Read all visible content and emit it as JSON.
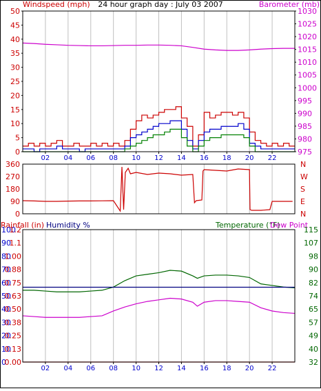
{
  "colors": {
    "frame": "#000000",
    "grid": "#c0c0c0",
    "wind_gust": "#cc0000",
    "wind_avg": "#0000cc",
    "wind_low": "#008000",
    "barometer": "#cc00cc",
    "direction": "#cc0000",
    "rain": "#cc0000",
    "humidity": "#000080",
    "temperature": "#006600",
    "dew_point": "#cc00cc",
    "blue_text": "#0000cc"
  },
  "chart_data": [
    {
      "type": "line",
      "title": "24 hour graph day : July 03 2007",
      "ylabel": "Windspeed (mph)",
      "y2label": "Barometer (mb)",
      "x_ticks": [
        "02",
        "04",
        "06",
        "08",
        "10",
        "12",
        "14",
        "16",
        "18",
        "20",
        "22"
      ],
      "xlim": [
        0,
        24
      ],
      "ylim": [
        0,
        50
      ],
      "y_ticks": [
        "0",
        "5",
        "10",
        "15",
        "20",
        "25",
        "30",
        "35",
        "40",
        "45",
        "50"
      ],
      "y2lim": [
        975,
        1030
      ],
      "y2_ticks": [
        "975",
        "980",
        "985",
        "990",
        "995",
        "1000",
        "1005",
        "1010",
        "1015",
        "1020",
        "1025",
        "1030"
      ],
      "series": [
        {
          "key": "gust",
          "axis": "left",
          "x": [
            0,
            0.5,
            1,
            1.5,
            2,
            2.5,
            3,
            3.5,
            4,
            4.5,
            5,
            5.5,
            6,
            6.5,
            7,
            7.5,
            8,
            8.5,
            9,
            9.5,
            10,
            10.5,
            11,
            11.5,
            12,
            12.5,
            13,
            13.5,
            14,
            14.5,
            15,
            15.5,
            16,
            16.5,
            17,
            17.5,
            18,
            18.5,
            19,
            19.5,
            20,
            20.5,
            21,
            21.5,
            22,
            22.5,
            23,
            23.5
          ],
          "values": [
            2,
            3,
            2,
            3,
            2,
            3,
            4,
            2,
            2,
            3,
            2,
            2,
            3,
            2,
            3,
            2,
            3,
            2,
            4,
            8,
            11,
            13,
            12,
            13,
            14,
            15,
            15,
            16,
            12,
            9,
            2,
            6,
            14,
            12,
            13,
            14,
            14,
            13,
            14,
            12,
            7,
            4,
            3,
            2,
            3,
            2,
            3,
            2
          ]
        },
        {
          "key": "avg",
          "axis": "left",
          "x": [
            0,
            0.5,
            1,
            1.5,
            2,
            2.5,
            3,
            3.5,
            4,
            4.5,
            5,
            5.5,
            6,
            6.5,
            7,
            7.5,
            8,
            8.5,
            9,
            9.5,
            10,
            10.5,
            11,
            11.5,
            12,
            12.5,
            13,
            13.5,
            14,
            14.5,
            15,
            15.5,
            16,
            16.5,
            17,
            17.5,
            18,
            18.5,
            19,
            19.5,
            20,
            20.5,
            21,
            21.5,
            22,
            22.5,
            23,
            23.5
          ],
          "values": [
            1,
            1,
            0,
            1,
            1,
            1,
            2,
            1,
            1,
            1,
            0,
            1,
            1,
            1,
            1,
            1,
            1,
            1,
            2,
            5,
            6,
            7,
            8,
            9,
            10,
            10,
            11,
            11,
            8,
            4,
            1,
            4,
            7,
            8,
            8,
            9,
            9,
            9,
            10,
            8,
            3,
            2,
            1,
            1,
            1,
            1,
            1,
            1
          ]
        },
        {
          "key": "low",
          "axis": "left",
          "x": [
            0,
            0.5,
            1,
            1.5,
            2,
            2.5,
            3,
            3.5,
            4,
            4.5,
            5,
            5.5,
            6,
            6.5,
            7,
            7.5,
            8,
            8.5,
            9,
            9.5,
            10,
            10.5,
            11,
            11.5,
            12,
            12.5,
            13,
            13.5,
            14,
            14.5,
            15,
            15.5,
            16,
            16.5,
            17,
            17.5,
            18,
            18.5,
            19,
            19.5,
            20,
            20.5,
            21,
            21.5,
            22,
            22.5,
            23,
            23.5
          ],
          "values": [
            0,
            0,
            0,
            0,
            0,
            0,
            0,
            0,
            0,
            0,
            0,
            0,
            0,
            0,
            0,
            0,
            0,
            0,
            1,
            2,
            3,
            4,
            5,
            6,
            6,
            7,
            8,
            8,
            5,
            2,
            0,
            2,
            4,
            5,
            5,
            6,
            6,
            6,
            6,
            5,
            2,
            0,
            0,
            0,
            0,
            0,
            0,
            0
          ]
        },
        {
          "key": "barometer",
          "axis": "right",
          "x": [
            0,
            1,
            2,
            3,
            4,
            5,
            6,
            7,
            8,
            9,
            10,
            11,
            12,
            13,
            14,
            15,
            16,
            17,
            18,
            19,
            20,
            21,
            22,
            23,
            24
          ],
          "values": [
            1017.5,
            1017.3,
            1017.0,
            1016.8,
            1016.6,
            1016.5,
            1016.4,
            1016.4,
            1016.5,
            1016.6,
            1016.6,
            1016.7,
            1016.7,
            1016.6,
            1016.4,
            1015.8,
            1015.1,
            1014.8,
            1014.6,
            1014.6,
            1014.8,
            1015.1,
            1015.3,
            1015.4,
            1015.4
          ]
        }
      ]
    },
    {
      "type": "line",
      "xlim": [
        0,
        24
      ],
      "ylim": [
        0,
        360
      ],
      "y_ticks": [
        "0",
        "90",
        "180",
        "270",
        "360"
      ],
      "y2_ticks": [
        "N",
        "E",
        "S",
        "W",
        "N"
      ],
      "series": [
        {
          "key": "direction",
          "axis": "left",
          "x": [
            0,
            1,
            2,
            3,
            4,
            5,
            6,
            7,
            8,
            8.6,
            8.75,
            8.9,
            9.05,
            9.3,
            9.5,
            10,
            11,
            12,
            13,
            14,
            15,
            15.15,
            15.3,
            15.8,
            15.9,
            16,
            17,
            18,
            19,
            20,
            20.05,
            20.2,
            21,
            21.8,
            22,
            23,
            23.8
          ],
          "values": [
            95,
            93,
            90,
            90,
            92,
            93,
            93,
            94,
            95,
            20,
            340,
            30,
            300,
            330,
            290,
            300,
            285,
            295,
            290,
            280,
            285,
            80,
            95,
            100,
            310,
            320,
            315,
            310,
            325,
            320,
            30,
            25,
            25,
            30,
            90,
            90,
            90
          ]
        }
      ]
    },
    {
      "type": "line",
      "ylabel": "Rainfall (in)",
      "ylabel2": "Humidity %",
      "y2label": "Temperature (°F)",
      "y2label2": "Dew Point",
      "x_ticks": [
        "02",
        "04",
        "06",
        "08",
        "10",
        "12",
        "14",
        "16",
        "18",
        "20",
        "22"
      ],
      "xlim": [
        0,
        24
      ],
      "rain_ticks": [
        "0.00",
        "0.13",
        "0.25",
        "0.38",
        "0.50",
        "0.63",
        "0.75",
        "0.88",
        "1.00",
        "1.1",
        "1.2"
      ],
      "humidity_ticks": [
        "0",
        "10",
        "20",
        "30",
        "40",
        "50",
        "60",
        "70",
        "80",
        "90",
        "100"
      ],
      "y2lim": [
        32,
        115
      ],
      "y2_ticks": [
        "32",
        "40",
        "49",
        "57",
        "65",
        "74",
        "82",
        "90",
        "98",
        "107",
        "115"
      ],
      "series": [
        {
          "key": "temperature",
          "axis": "right",
          "x": [
            0,
            1,
            2,
            3,
            4,
            5,
            6,
            7,
            8,
            9,
            10,
            11,
            12,
            13,
            14,
            15,
            15.4,
            16,
            17,
            18,
            19,
            20,
            21,
            22,
            23,
            24
          ],
          "values": [
            77,
            77,
            76.5,
            76,
            76,
            76,
            76.5,
            77,
            79,
            83,
            86,
            87,
            88,
            89.5,
            89,
            86,
            84.5,
            86,
            86.5,
            86.5,
            86,
            85,
            81,
            80,
            79,
            78.5
          ]
        },
        {
          "key": "dew_point",
          "axis": "right",
          "x": [
            0,
            1,
            2,
            3,
            4,
            5,
            6,
            7,
            8,
            9,
            10,
            11,
            12,
            13,
            14,
            15,
            15.4,
            16,
            17,
            18,
            19,
            20,
            21,
            22,
            23,
            24
          ],
          "values": [
            61,
            60.5,
            60,
            60,
            60,
            60,
            60.5,
            61,
            64,
            66.5,
            68.5,
            70,
            71,
            72,
            71.5,
            69.5,
            67,
            69.5,
            70.5,
            70.5,
            70,
            69.5,
            66,
            64,
            63,
            62.5
          ]
        },
        {
          "key": "humidity",
          "axis": "left",
          "x": [
            0,
            24
          ],
          "values": [
            56.5,
            56.5
          ]
        },
        {
          "key": "rain",
          "axis": "left",
          "x": [
            0,
            24
          ],
          "values": [
            0,
            0
          ]
        }
      ]
    }
  ]
}
